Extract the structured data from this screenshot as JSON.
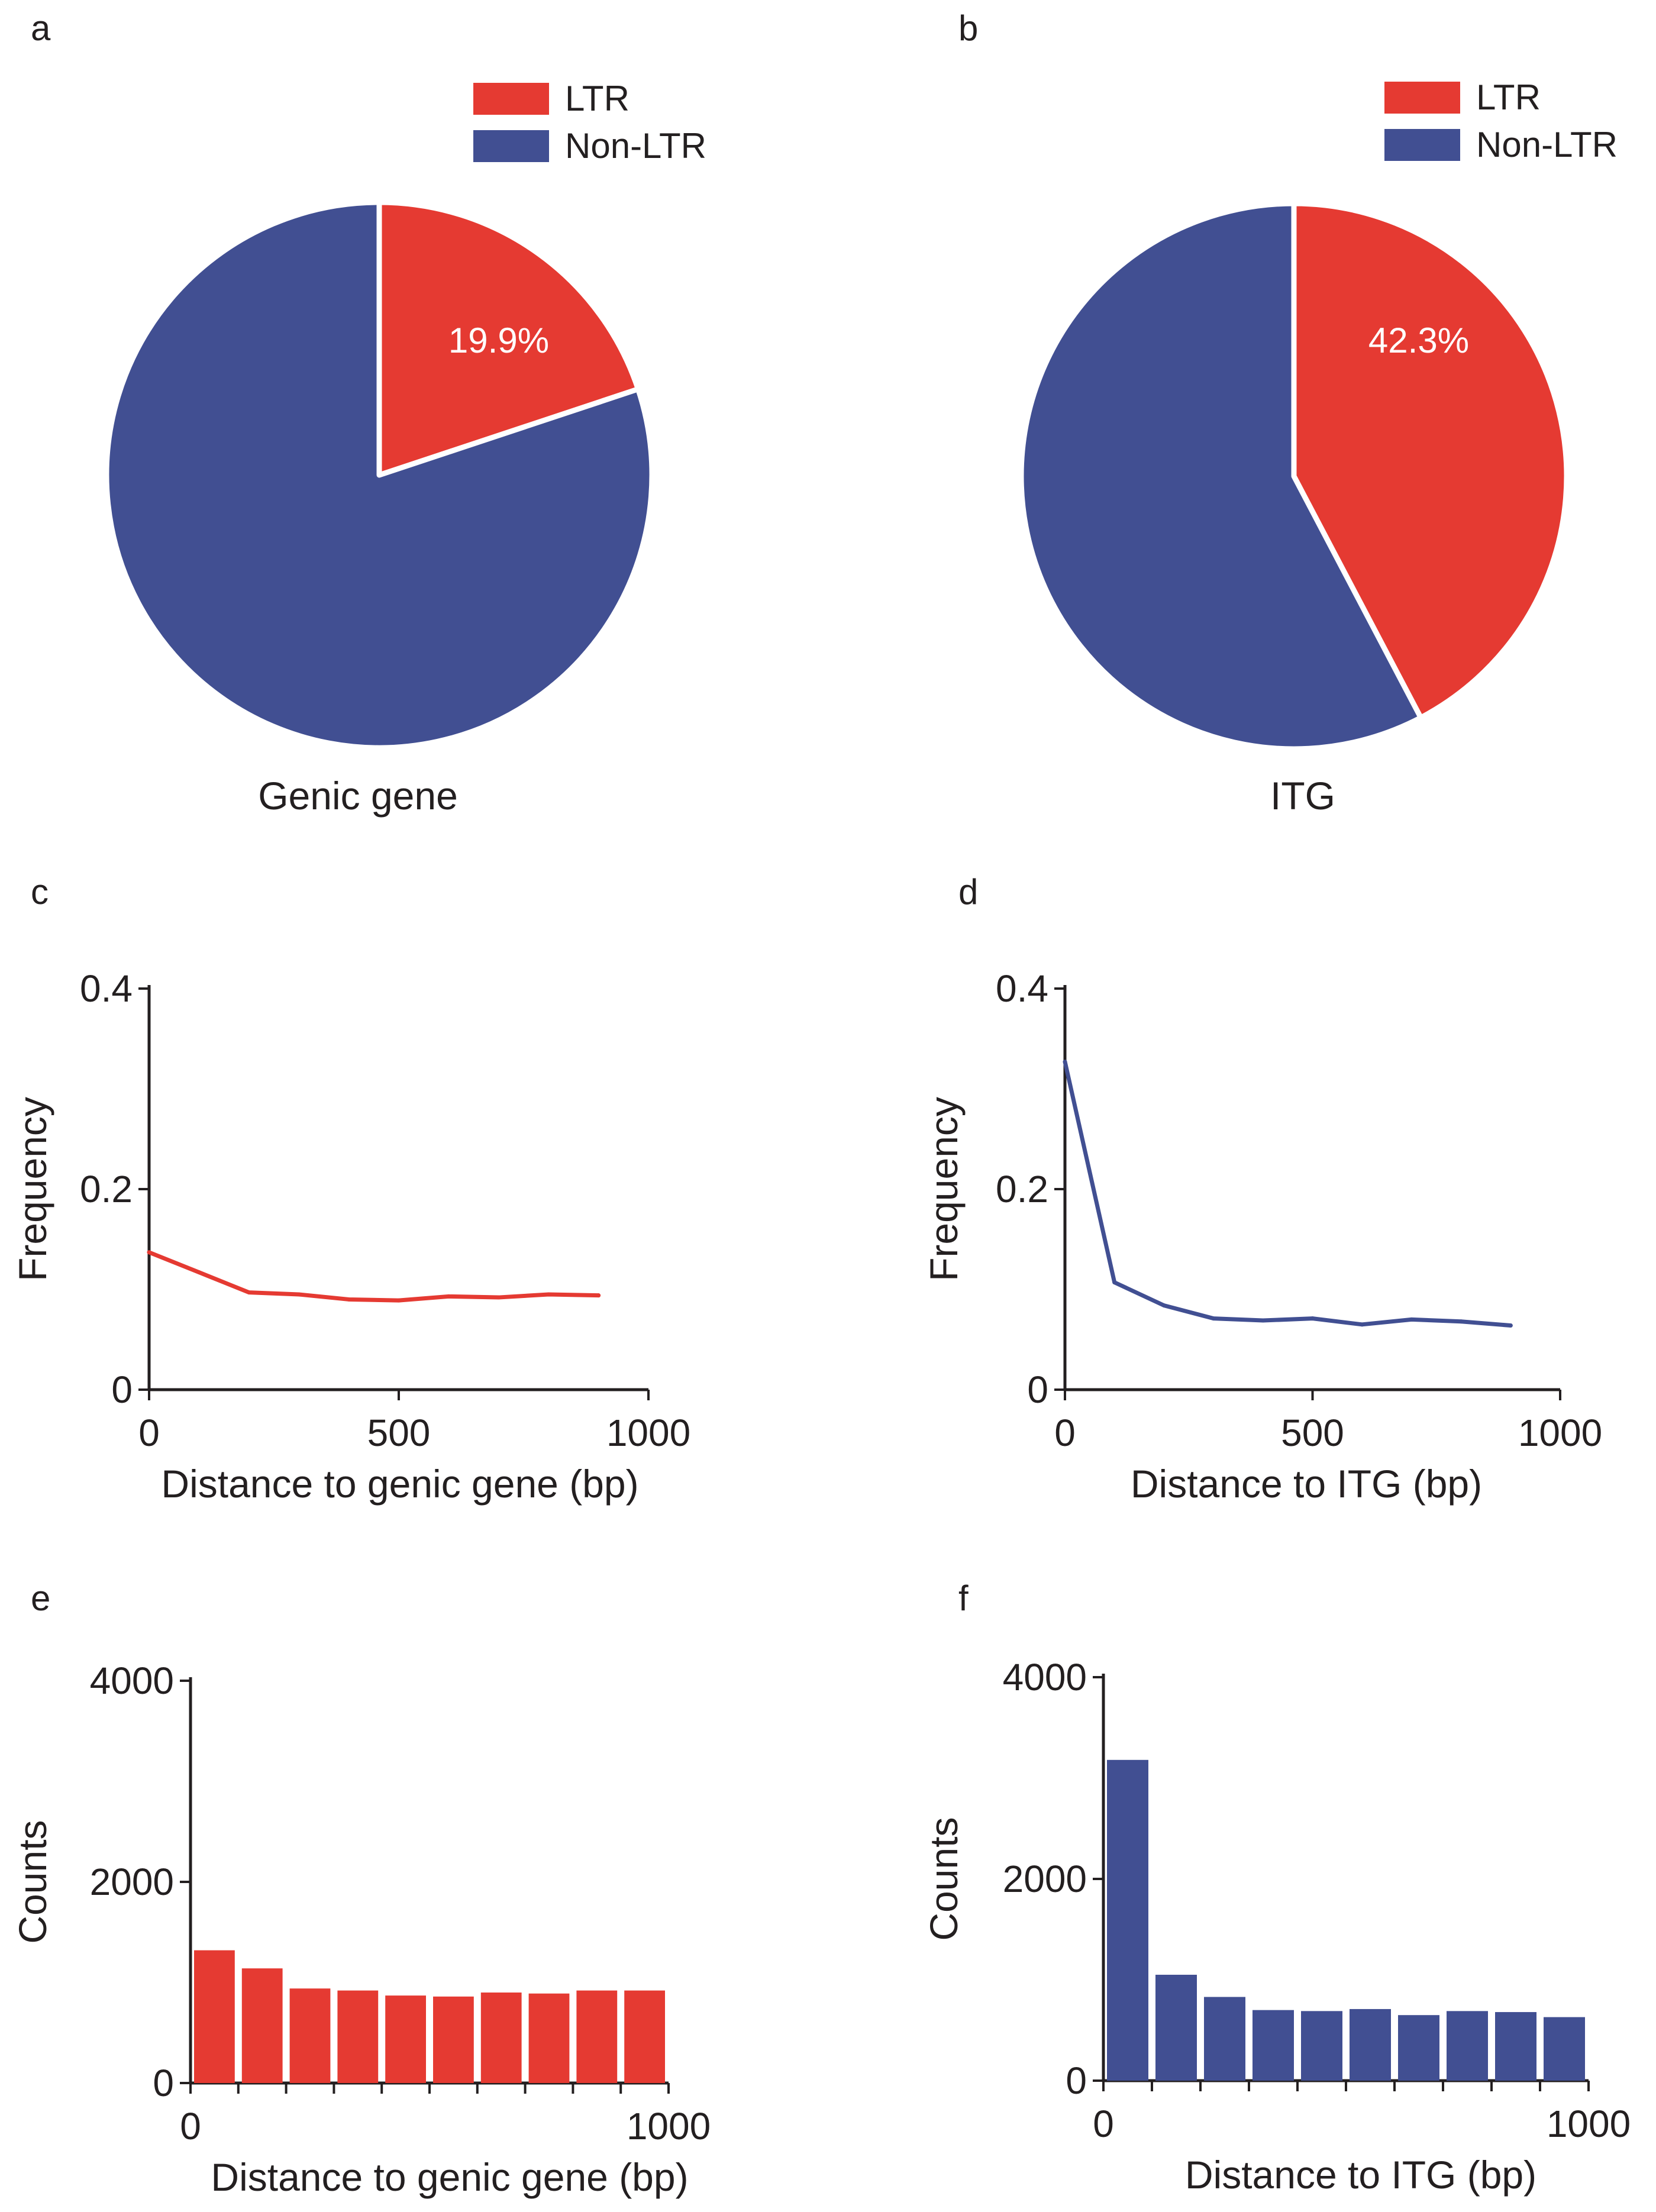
{
  "colors": {
    "ltr": "#e53a32",
    "nonltr": "#414f92",
    "axis": "#231f20"
  },
  "chart_data": [
    {
      "panel": "a",
      "type": "pie",
      "title": "Genic gene",
      "legend": [
        "LTR",
        "Non-LTR"
      ],
      "slices": [
        {
          "name": "LTR",
          "value": 19.9
        },
        {
          "name": "Non-LTR",
          "value": 80.1
        }
      ],
      "slice_label": "19.9%"
    },
    {
      "panel": "b",
      "type": "pie",
      "title": "ITG",
      "legend": [
        "LTR",
        "Non-LTR"
      ],
      "slices": [
        {
          "name": "LTR",
          "value": 42.3
        },
        {
          "name": "Non-LTR",
          "value": 57.7
        }
      ],
      "slice_label": "42.3%"
    },
    {
      "panel": "c",
      "type": "line",
      "xlabel": "Distance to genic gene (bp)",
      "ylabel": "Frequency",
      "xlim": [
        0,
        1000
      ],
      "ylim": [
        0,
        0.4
      ],
      "xticks": [
        0,
        500,
        1000
      ],
      "xtick_labels": [
        "0",
        "500",
        "1000"
      ],
      "yticks": [
        0,
        0.2,
        0.4
      ],
      "ytick_labels": [
        "0",
        "0.2",
        "0.4"
      ],
      "series": [
        {
          "name": "LTR",
          "x": [
            0,
            100,
            200,
            300,
            400,
            500,
            600,
            700,
            800,
            900
          ],
          "y": [
            0.137,
            0.117,
            0.097,
            0.095,
            0.09,
            0.089,
            0.093,
            0.092,
            0.095,
            0.094
          ]
        }
      ]
    },
    {
      "panel": "d",
      "type": "line",
      "xlabel": "Distance to ITG (bp)",
      "ylabel": "Frequency",
      "xlim": [
        0,
        1000
      ],
      "ylim": [
        0,
        0.4
      ],
      "xticks": [
        0,
        500,
        1000
      ],
      "xtick_labels": [
        "0",
        "500",
        "1000"
      ],
      "yticks": [
        0,
        0.2,
        0.4
      ],
      "ytick_labels": [
        "0",
        "0.2",
        "0.4"
      ],
      "series": [
        {
          "name": "ITG",
          "x": [
            0,
            100,
            200,
            300,
            400,
            500,
            600,
            700,
            800,
            900
          ],
          "y": [
            0.327,
            0.107,
            0.084,
            0.071,
            0.069,
            0.071,
            0.065,
            0.07,
            0.068,
            0.064
          ]
        }
      ]
    },
    {
      "panel": "e",
      "type": "bar",
      "xlabel": "Distance to genic gene (bp)",
      "ylabel": "Counts",
      "xlim": [
        0,
        1000
      ],
      "ylim": [
        0,
        4000
      ],
      "xticks": [
        0,
        1000
      ],
      "xtick_labels": [
        "0",
        "1000"
      ],
      "yticks": [
        0,
        2000,
        4000
      ],
      "ytick_labels": [
        "0",
        "2000",
        "4000"
      ],
      "bin_width": 100,
      "bins": [
        0,
        100,
        200,
        300,
        400,
        500,
        600,
        700,
        800,
        900
      ],
      "values": [
        1320,
        1140,
        940,
        920,
        870,
        860,
        900,
        890,
        920,
        920
      ]
    },
    {
      "panel": "f",
      "type": "bar",
      "xlabel": "Distance to ITG (bp)",
      "ylabel": "Counts",
      "xlim": [
        0,
        1000
      ],
      "ylim": [
        0,
        4000
      ],
      "xticks": [
        0,
        1000
      ],
      "xtick_labels": [
        "0",
        "1000"
      ],
      "yticks": [
        0,
        2000,
        4000
      ],
      "ytick_labels": [
        "0",
        "2000",
        "4000"
      ],
      "bin_width": 100,
      "bins": [
        0,
        100,
        200,
        300,
        400,
        500,
        600,
        700,
        800,
        900
      ],
      "values": [
        3180,
        1050,
        830,
        700,
        690,
        710,
        650,
        690,
        680,
        630
      ]
    }
  ]
}
